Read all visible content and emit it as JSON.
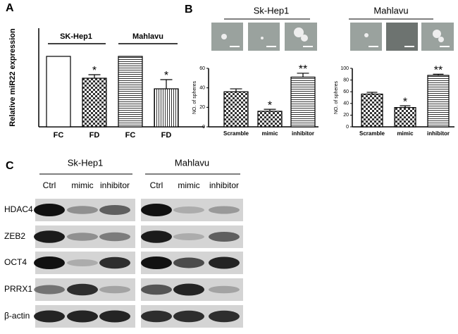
{
  "figure_labels": [
    "A",
    "B",
    "C"
  ],
  "chart_data": [
    {
      "type": "bar",
      "ylabel": "Relative miR22 expression",
      "groups": [
        "SK-Hep1",
        "Mahlavu"
      ],
      "categories": [
        "FC",
        "FD",
        "FC",
        "FD"
      ],
      "values": [
        1.0,
        0.69,
        1.0,
        0.54
      ],
      "errors": [
        0,
        0.05,
        0,
        0.13
      ],
      "annotations": [
        null,
        "*",
        null,
        "*"
      ],
      "patterns": [
        "plain",
        "checker",
        "hlines",
        "vlines"
      ],
      "ylim": [
        0,
        1.4
      ]
    },
    {
      "type": "bar",
      "title": "Sk-Hep1",
      "ylabel": "NO. of spheres",
      "categories": [
        "Scramble",
        "mimic",
        "inhibitor"
      ],
      "values": [
        36,
        16,
        51
      ],
      "errors": [
        3,
        2,
        4
      ],
      "annotations": [
        null,
        "*",
        "**"
      ],
      "patterns": [
        "checker",
        "checker",
        "hlines"
      ],
      "ylim": [
        0,
        60
      ],
      "yticks": [
        0,
        20,
        40,
        60
      ]
    },
    {
      "type": "bar",
      "title": "Mahlavu",
      "ylabel": "NO. of spheres",
      "categories": [
        "Scramble",
        "mimic",
        "inhibitor"
      ],
      "values": [
        56,
        33,
        88
      ],
      "errors": [
        3,
        3,
        2
      ],
      "annotations": [
        null,
        "*",
        "**"
      ],
      "patterns": [
        "checker",
        "checker",
        "hlines"
      ],
      "ylim": [
        0,
        100
      ],
      "yticks": [
        0,
        20,
        40,
        60,
        80,
        100
      ]
    }
  ],
  "blot": {
    "cell_lines": [
      "Sk-Hep1",
      "Mahlavu"
    ],
    "lanes": [
      "Ctrl",
      "mimic",
      "inhibitor"
    ],
    "proteins": [
      "HDAC4",
      "ZEB2",
      "OCT4",
      "PRRX1",
      "β-actin"
    ]
  }
}
